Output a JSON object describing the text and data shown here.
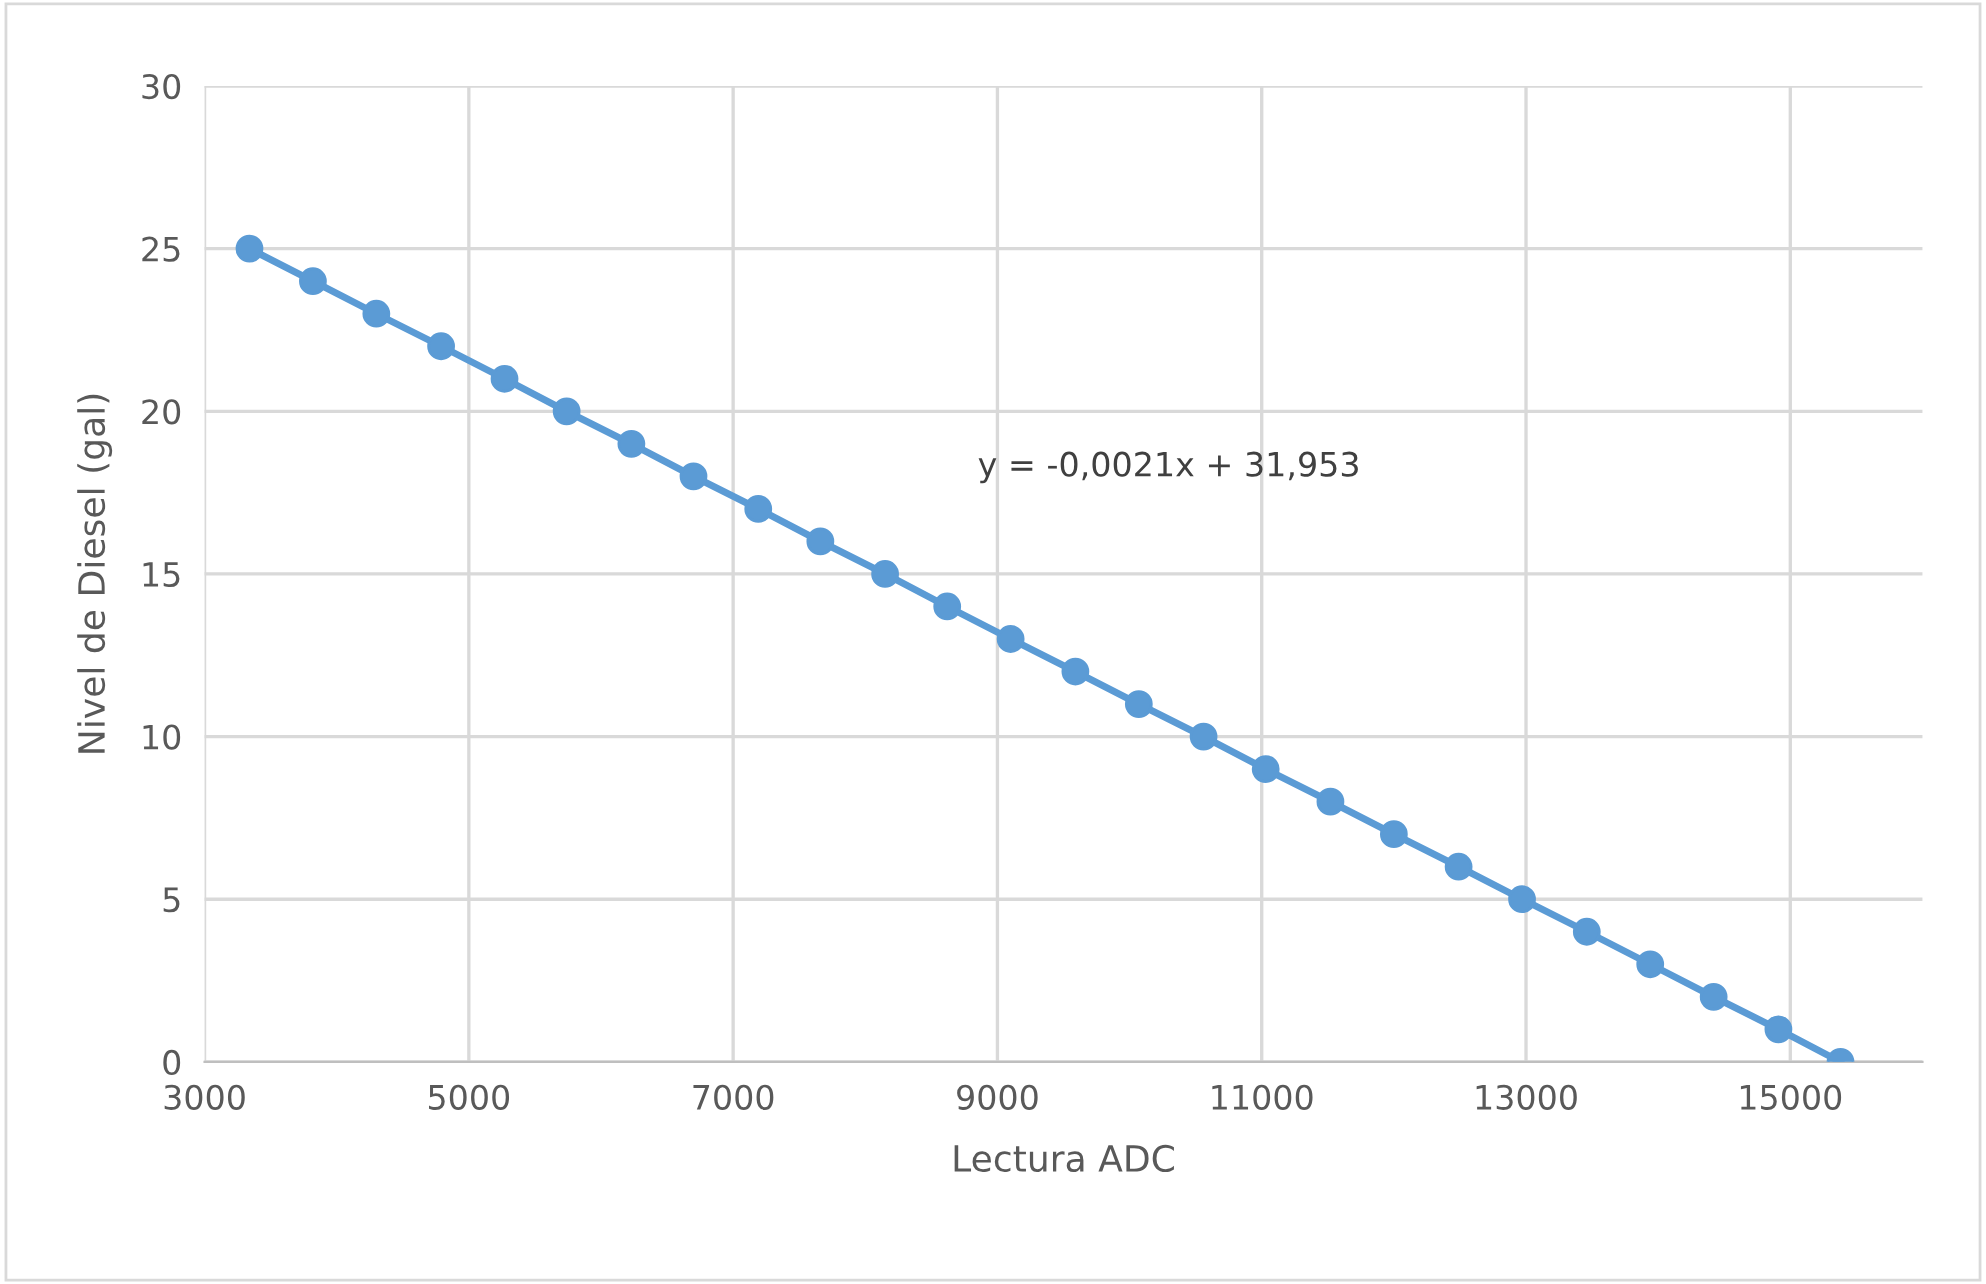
{
  "chart_data": {
    "type": "line",
    "xlabel": "Lectura ADC",
    "ylabel": "Nivel de Diesel (gal)",
    "x": [
      3340,
      3820,
      4300,
      4790,
      5270,
      5740,
      6230,
      6700,
      7190,
      7660,
      8150,
      8620,
      9100,
      9590,
      10070,
      10560,
      11030,
      11520,
      12000,
      12490,
      12970,
      13460,
      13940,
      14420,
      14910,
      15380
    ],
    "series": [
      {
        "color": "#5b9bd5",
        "values": [
          25,
          24,
          23,
          22,
          21,
          20,
          19,
          18,
          17,
          16,
          15,
          14,
          13,
          12,
          11,
          10,
          9,
          8,
          7,
          6,
          5,
          4,
          3,
          2,
          1,
          0
        ]
      }
    ],
    "marker": "circle",
    "line_style": "solid",
    "grid": true,
    "xlim": [
      3000,
      16000
    ],
    "xticks": [
      3000,
      5000,
      7000,
      9000,
      11000,
      13000,
      15000
    ],
    "ylim": [
      0,
      30
    ],
    "yticks": [
      0,
      5,
      10,
      15,
      20,
      25,
      30
    ],
    "annotations": [
      "y = -0,0021x + 31,953"
    ]
  }
}
